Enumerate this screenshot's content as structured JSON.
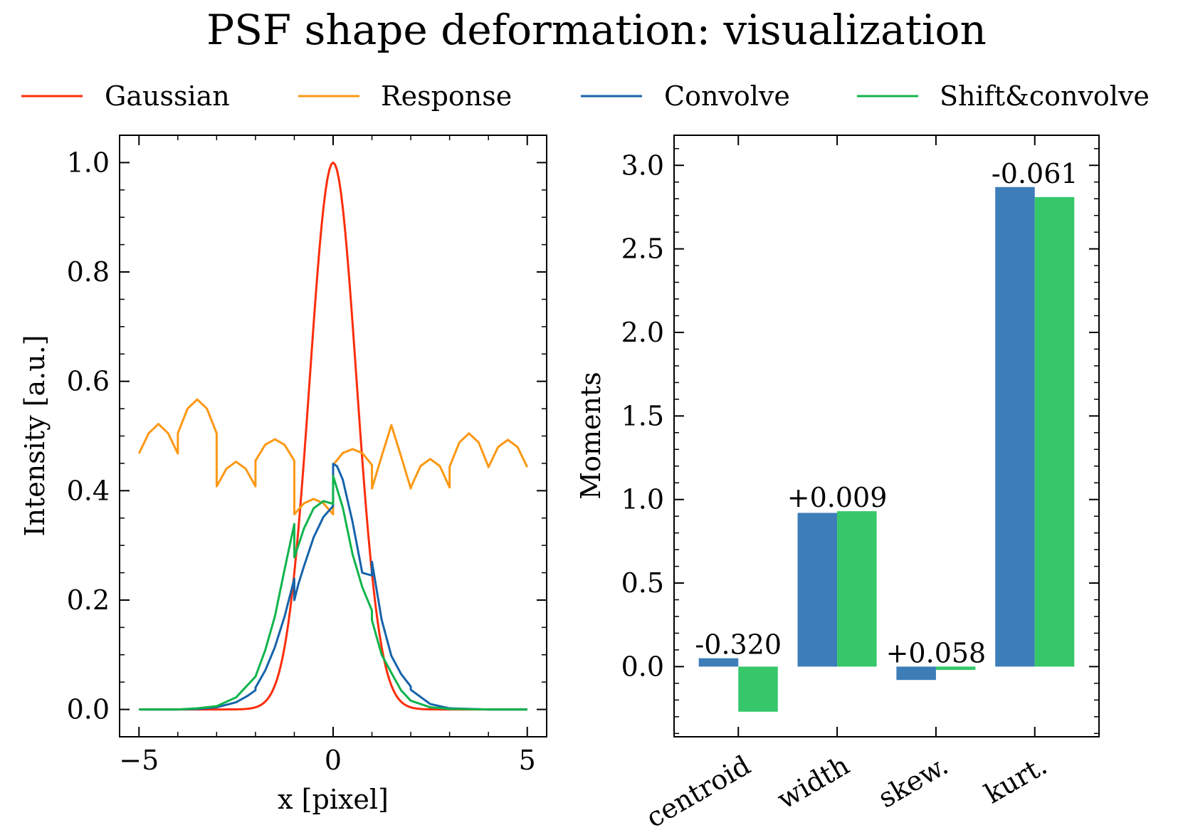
{
  "title": "PSF shape deformation: visualization",
  "legend": {
    "placement": "top, above both panels",
    "items": [
      {
        "label": "Gaussian",
        "color": "#fc2d0a"
      },
      {
        "label": "Response",
        "color": "#fc9814"
      },
      {
        "label": "Convolve",
        "color": "#1663aa"
      },
      {
        "label": "Shift&convolve",
        "color": "#10b44c"
      }
    ]
  },
  "chart_data": [
    {
      "type": "line",
      "xlabel": "x [pixel]",
      "ylabel": "Intensity [a.u.]",
      "xlim": [
        -5.5,
        5.5
      ],
      "ylim": [
        -0.05,
        1.05
      ],
      "xticks": [
        -5,
        0,
        5
      ],
      "xtick_labels": [
        "−5",
        "0",
        "5"
      ],
      "yticks": [
        0.0,
        0.2,
        0.4,
        0.6,
        0.8,
        1.0
      ],
      "ytick_labels": [
        "0.0",
        "0.2",
        "0.4",
        "0.6",
        "0.8",
        "1.0"
      ],
      "grid": false,
      "series": [
        {
          "name": "Gaussian",
          "color": "#fc2d0a",
          "model": "gaussian",
          "sigma": 0.6
        },
        {
          "name": "Response",
          "color": "#fc9814",
          "x": [
            -5.0,
            -4.75,
            -4.5,
            -4.25,
            -4.0,
            -3.999,
            -3.75,
            -3.5,
            -3.25,
            -3.0,
            -2.999,
            -2.75,
            -2.5,
            -2.25,
            -2.0,
            -1.999,
            -1.75,
            -1.5,
            -1.25,
            -1.0,
            -0.999,
            -0.75,
            -0.5,
            -0.25,
            -0.001,
            0.0,
            0.25,
            0.5,
            0.75,
            1.0,
            1.001,
            1.25,
            1.5,
            1.75,
            2.0,
            2.001,
            2.25,
            2.5,
            2.75,
            3.0,
            3.001,
            3.25,
            3.5,
            3.75,
            4.0,
            4.001,
            4.25,
            4.5,
            4.75,
            5.0
          ],
          "y": [
            0.468,
            0.505,
            0.522,
            0.505,
            0.468,
            0.505,
            0.55,
            0.567,
            0.55,
            0.505,
            0.408,
            0.44,
            0.453,
            0.44,
            0.408,
            0.455,
            0.484,
            0.494,
            0.484,
            0.455,
            0.357,
            0.377,
            0.385,
            0.377,
            0.357,
            0.447,
            0.469,
            0.476,
            0.469,
            0.447,
            0.404,
            0.463,
            0.52,
            0.463,
            0.404,
            0.406,
            0.445,
            0.458,
            0.445,
            0.406,
            0.444,
            0.488,
            0.505,
            0.488,
            0.444,
            0.443,
            0.48,
            0.493,
            0.48,
            0.443
          ]
        },
        {
          "name": "Convolve",
          "color": "#1663aa",
          "x": [
            -5.0,
            -4.0,
            -3.5,
            -3.0,
            -2.5,
            -2.2,
            -2.0,
            -1.999,
            -1.75,
            -1.5,
            -1.25,
            -1.0,
            -0.999,
            -0.9,
            -0.75,
            -0.5,
            -0.25,
            -0.001,
            0.0,
            0.1,
            0.25,
            0.5,
            0.75,
            0.999,
            1.0,
            1.25,
            1.5,
            1.75,
            1.999,
            2.0,
            2.25,
            2.5,
            3.0,
            4.0,
            5.0
          ],
          "y": [
            0.0,
            0.0,
            0.001,
            0.004,
            0.013,
            0.025,
            0.035,
            0.04,
            0.071,
            0.114,
            0.17,
            0.239,
            0.2,
            0.228,
            0.262,
            0.315,
            0.352,
            0.372,
            0.449,
            0.445,
            0.42,
            0.343,
            0.25,
            0.245,
            0.27,
            0.164,
            0.098,
            0.065,
            0.042,
            0.036,
            0.023,
            0.01,
            0.002,
            0.0,
            0.0
          ]
        },
        {
          "name": "Shift&convolve",
          "color": "#10b44c",
          "x": [
            -5.0,
            -4.0,
            -3.5,
            -3.0,
            -2.5,
            -2.0,
            -1.75,
            -1.5,
            -1.25,
            -1.0,
            -0.999,
            -0.75,
            -0.5,
            -0.25,
            -0.001,
            0.0,
            0.25,
            0.5,
            0.75,
            0.999,
            1.0,
            1.25,
            1.5,
            1.75,
            2.0,
            2.25,
            2.5,
            3.0,
            4.0,
            5.0
          ],
          "y": [
            0.0,
            0.0,
            0.002,
            0.006,
            0.022,
            0.06,
            0.108,
            0.17,
            0.256,
            0.339,
            0.278,
            0.331,
            0.368,
            0.381,
            0.376,
            0.427,
            0.369,
            0.284,
            0.224,
            0.181,
            0.163,
            0.1,
            0.067,
            0.035,
            0.016,
            0.01,
            0.004,
            0.001,
            0.0,
            0.0
          ]
        }
      ]
    },
    {
      "type": "bar",
      "ylabel": "Moments",
      "xlabel": "",
      "ylim": [
        -0.42,
        3.18
      ],
      "yticks": [
        0.0,
        0.5,
        1.0,
        1.5,
        2.0,
        2.5,
        3.0
      ],
      "ytick_labels": [
        "0.0",
        "0.5",
        "1.0",
        "1.5",
        "2.0",
        "2.5",
        "3.0"
      ],
      "categories": [
        "centroid",
        "width",
        "skew.",
        "kurt."
      ],
      "grid": false,
      "series": [
        {
          "name": "Convolve",
          "color": "#3d7db8",
          "values": [
            0.05,
            0.92,
            -0.08,
            2.87
          ]
        },
        {
          "name": "Shift&convolve",
          "color": "#35c76a",
          "values": [
            -0.27,
            0.93,
            -0.02,
            2.81
          ]
        }
      ],
      "annotations": [
        "-0.320",
        "+0.009",
        "+0.058",
        "-0.061"
      ]
    }
  ]
}
